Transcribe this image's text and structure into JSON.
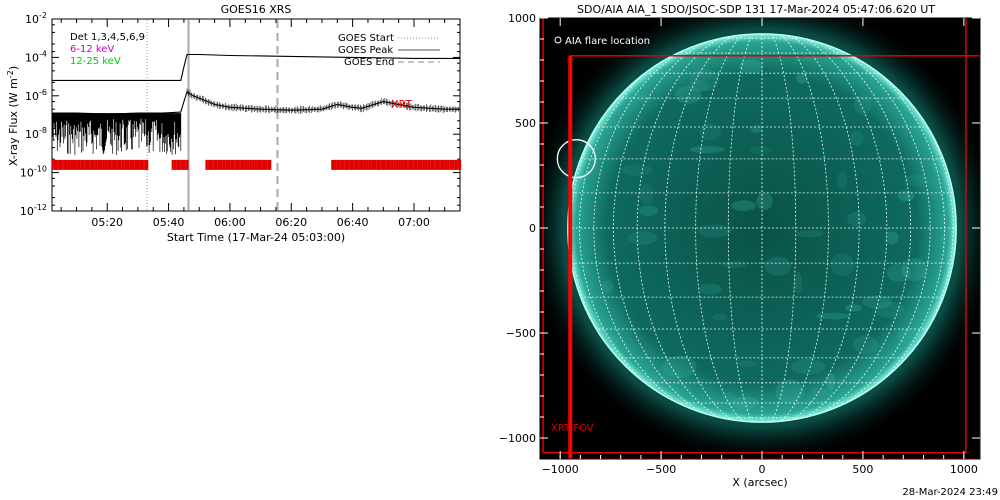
{
  "chart_data": [
    {
      "type": "line",
      "title": "GOES16 XRS",
      "xlabel": "Start Time (17-Mar-24 05:03:00)",
      "ylabel": "X-ray Flux (W m",
      "ylabel_sup": "-2",
      "ylabel_close": ")",
      "x_range_minutes_after_0500": [
        2,
        135
      ],
      "y_scale": "log",
      "ylim": [
        1e-12,
        0.01
      ],
      "y_ticks": [
        {
          "base": "10",
          "exp": "-2",
          "v": -2
        },
        {
          "base": "10",
          "exp": "-4",
          "v": -4
        },
        {
          "base": "10",
          "exp": "-6",
          "v": -6
        },
        {
          "base": "10",
          "exp": "-8",
          "v": -8
        },
        {
          "base": "10",
          "exp": "-10",
          "v": -10
        },
        {
          "base": "10",
          "exp": "-12",
          "v": -12
        }
      ],
      "x_ticks": [
        {
          "label": "05:20",
          "m": 20
        },
        {
          "label": "05:40",
          "m": 40
        },
        {
          "label": "06:00",
          "m": 60
        },
        {
          "label": "06:20",
          "m": 80
        },
        {
          "label": "06:40",
          "m": 100
        },
        {
          "label": "07:00",
          "m": 120
        }
      ],
      "legend_left": [
        {
          "text": "Det 1,3,4,5,6,9",
          "color": "#000000"
        },
        {
          "text": "6-12 keV",
          "color": "#cc00cc"
        },
        {
          "text": "12-25 keV",
          "color": "#00cc00"
        }
      ],
      "legend_right": [
        {
          "text": "GOES Start",
          "style": "dotted"
        },
        {
          "text": "GOES Peak",
          "style": "solid"
        },
        {
          "text": "GOES End",
          "style": "dashed"
        }
      ],
      "goes_start_min": 33,
      "goes_peak_min": 46.5,
      "goes_end_min": 75.5,
      "series": [
        {
          "name": "",
          "color": "#000000",
          "x_min": [
            2,
            10,
            20,
            30,
            38,
            44,
            45,
            46,
            48,
            55,
            60,
            70,
            80,
            90,
            95,
            100,
            103,
            106,
            110,
            115,
            120,
            130,
            135
          ],
          "log_flux": [
            -6.9,
            -6.9,
            -6.95,
            -6.9,
            -6.9,
            -6.85,
            -6.3,
            -5.8,
            -6.0,
            -6.45,
            -6.6,
            -6.7,
            -6.75,
            -6.7,
            -6.45,
            -6.6,
            -6.65,
            -6.5,
            -6.3,
            -6.45,
            -6.6,
            -6.7,
            -6.7
          ]
        },
        {
          "name": "",
          "color": "#000000",
          "x_min": [
            2,
            20,
            40,
            44,
            45,
            46,
            50,
            60,
            80,
            100,
            120,
            135
          ],
          "log_flux": [
            -5.2,
            -5.2,
            -5.2,
            -5.2,
            -4.5,
            -3.85,
            -3.85,
            -3.9,
            -3.95,
            -4.0,
            -4.05,
            -4.05
          ]
        }
      ],
      "xrt_label": "XRT",
      "xrt_log_flux": -9.6,
      "xrt_coverage_min": [
        [
          2,
          33
        ],
        [
          41,
          46
        ],
        [
          52,
          73
        ],
        [
          93,
          135
        ]
      ]
    },
    {
      "type": "image",
      "title": "SDO/AIA AIA_1 SDO/JSOC-SDP 131 17-Mar-2024 05:47:06.620 UT",
      "xlabel": "X (arcsec)",
      "ylabel": "",
      "xlim": [
        -1100,
        1080
      ],
      "ylim": [
        -1100,
        1000
      ],
      "x_ticks": [
        -1000,
        -500,
        0,
        500,
        1000
      ],
      "y_ticks": [
        -1000,
        -500,
        0,
        500,
        1000
      ],
      "x_tick_labels": [
        "−1000",
        "−500",
        "0",
        "500",
        "1000"
      ],
      "y_tick_labels": [
        "1000",
        "500",
        "0",
        "−500",
        "−1000"
      ],
      "solar_radius_arcsec": 962,
      "disk_color": "#0d6f62",
      "limb_color": "#7fffee",
      "flare_location_label": "AIA flare location",
      "flare_location_arcsec": [
        -920,
        330
      ],
      "xrt_fov_label": "XRT FOV",
      "xrt_fov_arcsec": [
        {
          "x0": -1085,
          "y0": -1070,
          "x1": 1010,
          "y1": 1020
        },
        {
          "x0": -950,
          "y0": -1100,
          "x1": 1080,
          "y1": 820
        }
      ]
    }
  ],
  "footer": {
    "timestamp": "28-Mar-2024 23:49"
  }
}
